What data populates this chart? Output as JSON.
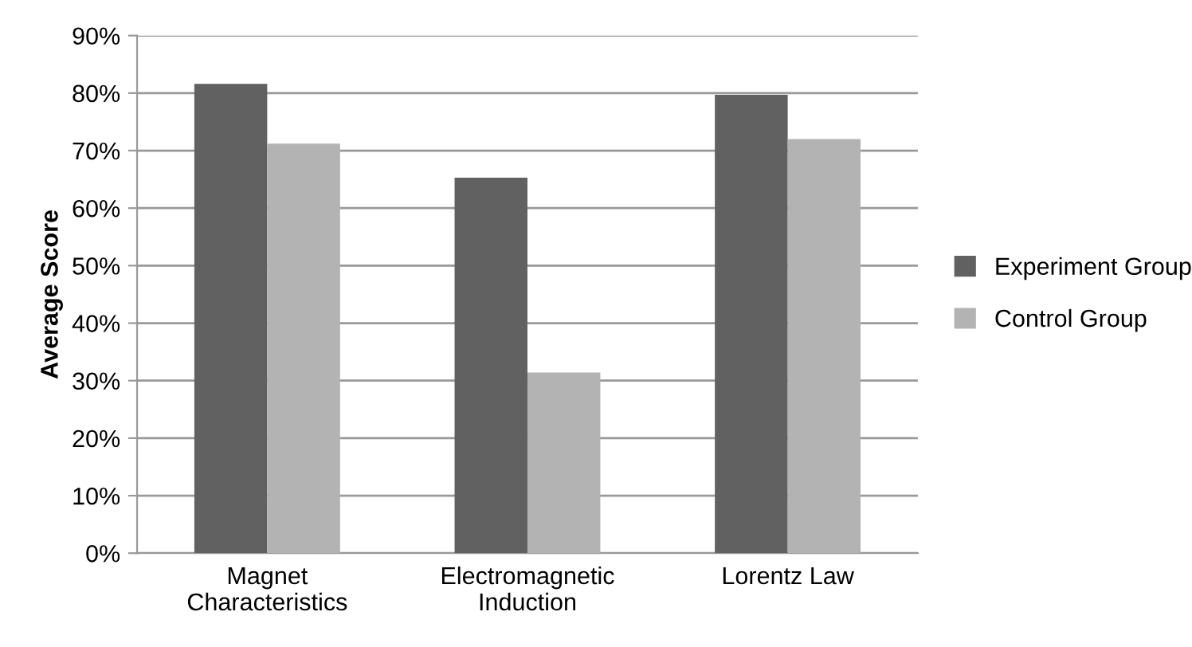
{
  "chart_data": {
    "type": "bar",
    "ylabel": "Average Score",
    "categories": [
      "Magnet\nCharacteristics",
      "Electromagnetic\nInduction",
      "Lorentz Law"
    ],
    "series": [
      {
        "name": "Experiment Group",
        "color": "#616161",
        "values": [
          81.6,
          65.3,
          79.7
        ]
      },
      {
        "name": "Control Group",
        "color": "#b3b3b3",
        "values": [
          71.2,
          31.4,
          72.0
        ]
      }
    ],
    "ylim": [
      0,
      90
    ],
    "yticks": [
      {
        "value": 0,
        "label": "0%"
      },
      {
        "value": 10,
        "label": "10%"
      },
      {
        "value": 20,
        "label": "20%"
      },
      {
        "value": 30,
        "label": "30%"
      },
      {
        "value": 40,
        "label": "40%"
      },
      {
        "value": 50,
        "label": "50%"
      },
      {
        "value": 60,
        "label": "60%"
      },
      {
        "value": 70,
        "label": "70%"
      },
      {
        "value": 80,
        "label": "80%"
      },
      {
        "value": 90,
        "label": "90%"
      }
    ],
    "grid": "y",
    "legend": "right"
  }
}
